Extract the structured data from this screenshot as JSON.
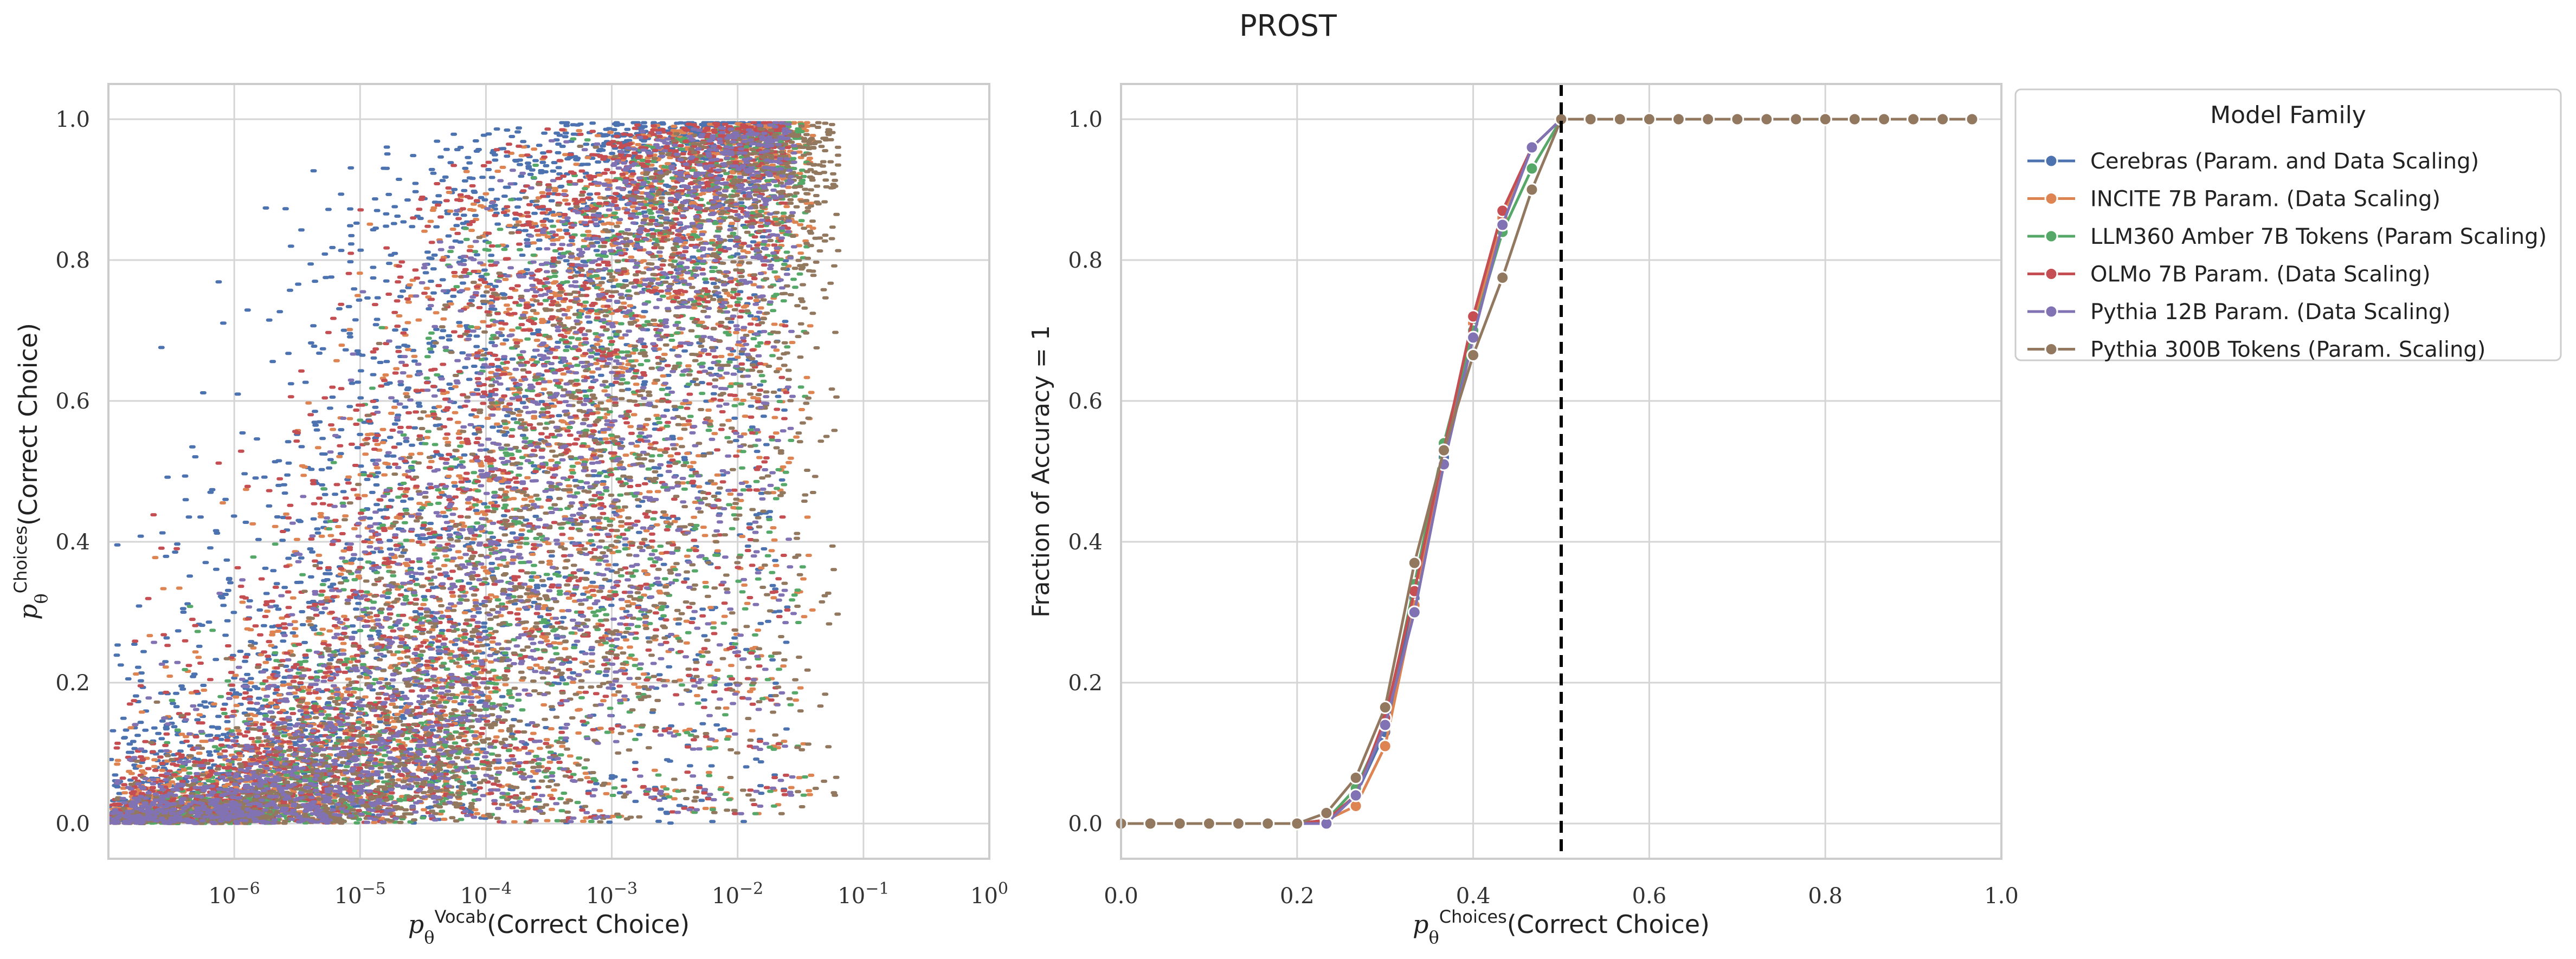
{
  "figure_title": "PROST",
  "colors": {
    "Cerebras": "#4c72b0",
    "INCITE": "#dd8452",
    "LLM360": "#55a868",
    "OLMo": "#c44e52",
    "Pythia12B": "#8172b3",
    "Pythia300B": "#937860"
  },
  "chart_data": [
    {
      "type": "scatter",
      "xscale": "log",
      "xlim": [
        1e-07,
        1
      ],
      "ylim": [
        -0.05,
        1.05
      ],
      "grid": true,
      "x_tick_labels": [
        "10^-6",
        "10^-5",
        "10^-4",
        "10^-3",
        "10^-2",
        "10^-1",
        "10^0"
      ],
      "x_tick_values": [
        1e-06,
        1e-05,
        0.0001,
        0.001,
        0.01,
        0.1,
        1
      ],
      "y_tick_labels": [
        "0.0",
        "0.2",
        "0.4",
        "0.6",
        "0.8",
        "1.0"
      ],
      "xlabel": {
        "var": "p",
        "sub": "θ",
        "sup": "Vocab",
        "text": "(Correct Choice)"
      },
      "ylabel": {
        "var": "p",
        "sub": "θ",
        "sup": "Choices",
        "text": "(Correct Choice)"
      },
      "series_order": [
        "Cerebras",
        "INCITE",
        "LLM360",
        "OLMo",
        "Pythia300B",
        "Pythia12B"
      ],
      "series_extent": {
        "Cerebras": {
          "x_range": [
            1e-07,
            0.03
          ],
          "y_range": [
            0.0,
            0.99
          ]
        },
        "INCITE": {
          "x_range": [
            1e-07,
            0.04
          ],
          "y_range": [
            0.0,
            0.99
          ]
        },
        "LLM360": {
          "x_range": [
            2e-07,
            0.035
          ],
          "y_range": [
            0.0,
            0.99
          ]
        },
        "OLMo": {
          "x_range": [
            1e-07,
            0.025
          ],
          "y_range": [
            0.0,
            0.99
          ]
        },
        "Pythia300B": {
          "x_range": [
            1e-07,
            0.06
          ],
          "y_range": [
            0.0,
            0.99
          ]
        },
        "Pythia12B": {
          "x_range": [
            1e-07,
            0.03
          ],
          "y_range": [
            0.0,
            0.99
          ]
        }
      }
    },
    {
      "type": "line",
      "xlim": [
        0,
        1
      ],
      "ylim": [
        -0.05,
        1.05
      ],
      "grid": true,
      "x_tick_labels": [
        "0.0",
        "0.2",
        "0.4",
        "0.6",
        "0.8",
        "1.0"
      ],
      "y_tick_labels": [
        "0.0",
        "0.2",
        "0.4",
        "0.6",
        "0.8",
        "1.0"
      ],
      "xlabel": {
        "var": "p",
        "sub": "θ",
        "sup": "Choices",
        "text": "(Correct Choice)"
      },
      "ylabel": "Fraction of Accuracy = 1",
      "vline_x": 0.5,
      "x": [
        0.0,
        0.0333,
        0.0667,
        0.1,
        0.1333,
        0.1667,
        0.2,
        0.2333,
        0.2667,
        0.3,
        0.3333,
        0.3667,
        0.4,
        0.4333,
        0.4667,
        0.5,
        0.5333,
        0.5667,
        0.6,
        0.6333,
        0.6667,
        0.7,
        0.7333,
        0.7667,
        0.8,
        0.8333,
        0.8667,
        0.9,
        0.9333,
        0.9667
      ],
      "legend": {
        "title": "Model Family",
        "placement": "outside upper right"
      },
      "series": [
        {
          "key": "Cerebras",
          "name": "Cerebras (Param. and Data Scaling)",
          "values": [
            0,
            0,
            0,
            0,
            0,
            0,
            0,
            0.005,
            0.04,
            0.13,
            0.32,
            0.52,
            0.7,
            0.86,
            0.96,
            1,
            1,
            1,
            1,
            1,
            1,
            1,
            1,
            1,
            1,
            1,
            1,
            1,
            1,
            1
          ]
        },
        {
          "key": "INCITE",
          "name": "INCITE 7B Param. (Data Scaling)",
          "values": [
            0,
            0,
            0,
            0,
            0,
            0,
            0,
            0.005,
            0.025,
            0.11,
            0.31,
            0.53,
            0.71,
            0.86,
            0.96,
            1,
            1,
            1,
            1,
            1,
            1,
            1,
            1,
            1,
            1,
            1,
            1,
            1,
            1,
            1
          ]
        },
        {
          "key": "LLM360",
          "name": "LLM360 Amber 7B Tokens (Param Scaling)",
          "values": [
            0,
            0,
            0,
            0,
            0,
            0,
            0,
            0.005,
            0.05,
            0.14,
            0.34,
            0.54,
            0.7,
            0.84,
            0.93,
            1,
            1,
            1,
            1,
            1,
            1,
            1,
            1,
            1,
            1,
            1,
            1,
            1,
            1,
            1
          ]
        },
        {
          "key": "OLMo",
          "name": "OLMo 7B Param. (Data Scaling)",
          "values": [
            0,
            0,
            0,
            0,
            0,
            0,
            0,
            0.005,
            0.04,
            0.15,
            0.33,
            0.53,
            0.72,
            0.87,
            0.96,
            1,
            1,
            1,
            1,
            1,
            1,
            1,
            1,
            1,
            1,
            1,
            1,
            1,
            1,
            1
          ]
        },
        {
          "key": "Pythia12B",
          "name": "Pythia 12B Param. (Data Scaling)",
          "values": [
            0,
            0,
            0,
            0,
            0,
            0,
            0,
            0.0,
            0.04,
            0.14,
            0.3,
            0.51,
            0.69,
            0.85,
            0.96,
            1,
            1,
            1,
            1,
            1,
            1,
            1,
            1,
            1,
            1,
            1,
            1,
            1,
            1,
            1
          ]
        },
        {
          "key": "Pythia300B",
          "name": "Pythia 300B Tokens (Param. Scaling)",
          "values": [
            0,
            0,
            0,
            0,
            0,
            0,
            0,
            0.015,
            0.065,
            0.165,
            0.37,
            0.53,
            0.665,
            0.775,
            0.9,
            1,
            1,
            1,
            1,
            1,
            1,
            1,
            1,
            1,
            1,
            1,
            1,
            1,
            1,
            1
          ]
        }
      ]
    }
  ]
}
